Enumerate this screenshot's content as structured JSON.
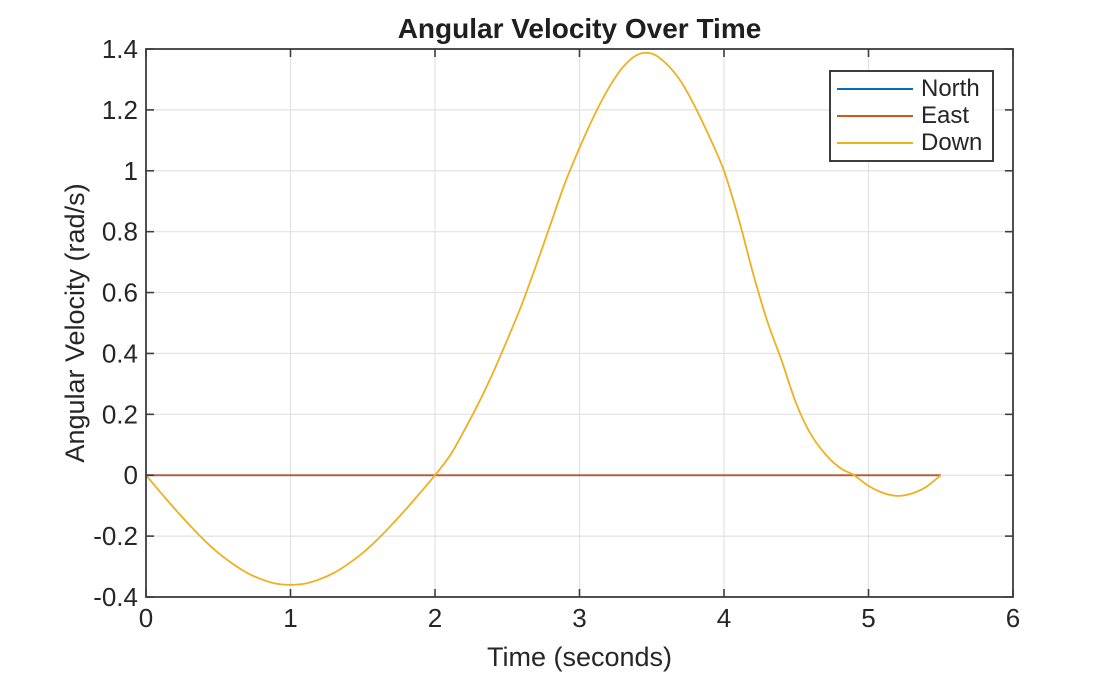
{
  "colors": {
    "background": "#ffffff",
    "axis": "#3d3d3d",
    "grid": "#e2e2e2",
    "text": "#262626",
    "title_text": "#1f1f1f"
  },
  "chart_data": {
    "type": "line",
    "title": "Angular Velocity Over Time",
    "xlabel": "Time (seconds)",
    "ylabel": "Angular Velocity (rad/s)",
    "xlim": [
      0,
      6
    ],
    "ylim": [
      -0.4,
      1.4
    ],
    "x_ticks": [
      0,
      1,
      2,
      3,
      4,
      5,
      6
    ],
    "x_tick_labels": [
      "0",
      "1",
      "2",
      "3",
      "4",
      "5",
      "6"
    ],
    "y_ticks": [
      -0.4,
      -0.2,
      0,
      0.2,
      0.4,
      0.6,
      0.8,
      1,
      1.2,
      1.4
    ],
    "y_tick_labels": [
      "-0.4",
      "-0.2",
      "0",
      "0.2",
      "0.4",
      "0.6",
      "0.8",
      "1",
      "1.2",
      "1.4"
    ],
    "grid": true,
    "legend_position": "top-right",
    "series": [
      {
        "name": "North",
        "color": "#0072BD",
        "constant_value": 0,
        "x_range": [
          0,
          5.5
        ]
      },
      {
        "name": "East",
        "color": "#D95319",
        "constant_value": 0,
        "x_range": [
          0,
          5.5
        ]
      },
      {
        "name": "Down",
        "color": "#EDB120",
        "x": [
          0,
          0.1,
          0.2,
          0.3,
          0.4,
          0.5,
          0.6,
          0.7,
          0.8,
          0.9,
          1,
          1.1,
          1.2,
          1.3,
          1.4,
          1.5,
          1.6,
          1.7,
          1.8,
          1.9,
          2,
          2.1,
          2.2,
          2.3,
          2.4,
          2.5,
          2.6,
          2.7,
          2.8,
          2.9,
          3,
          3.1,
          3.2,
          3.3,
          3.4,
          3.5,
          3.6,
          3.7,
          3.8,
          3.9,
          4,
          4.1,
          4.2,
          4.3,
          4.4,
          4.5,
          4.6,
          4.7,
          4.8,
          4.9,
          5,
          5.1,
          5.2,
          5.3,
          5.4,
          5.5
        ],
        "values": [
          0,
          -0.056,
          -0.111,
          -0.163,
          -0.212,
          -0.255,
          -0.291,
          -0.321,
          -0.342,
          -0.356,
          -0.36,
          -0.356,
          -0.342,
          -0.321,
          -0.291,
          -0.255,
          -0.212,
          -0.163,
          -0.111,
          -0.056,
          0,
          0.062,
          0.145,
          0.235,
          0.335,
          0.445,
          0.56,
          0.69,
          0.825,
          0.96,
          1.075,
          1.18,
          1.27,
          1.34,
          1.381,
          1.385,
          1.352,
          1.295,
          1.21,
          1.11,
          1,
          0.845,
          0.665,
          0.505,
          0.375,
          0.235,
          0.135,
          0.07,
          0.025,
          0,
          -0.035,
          -0.058,
          -0.068,
          -0.06,
          -0.038,
          0
        ]
      }
    ]
  }
}
